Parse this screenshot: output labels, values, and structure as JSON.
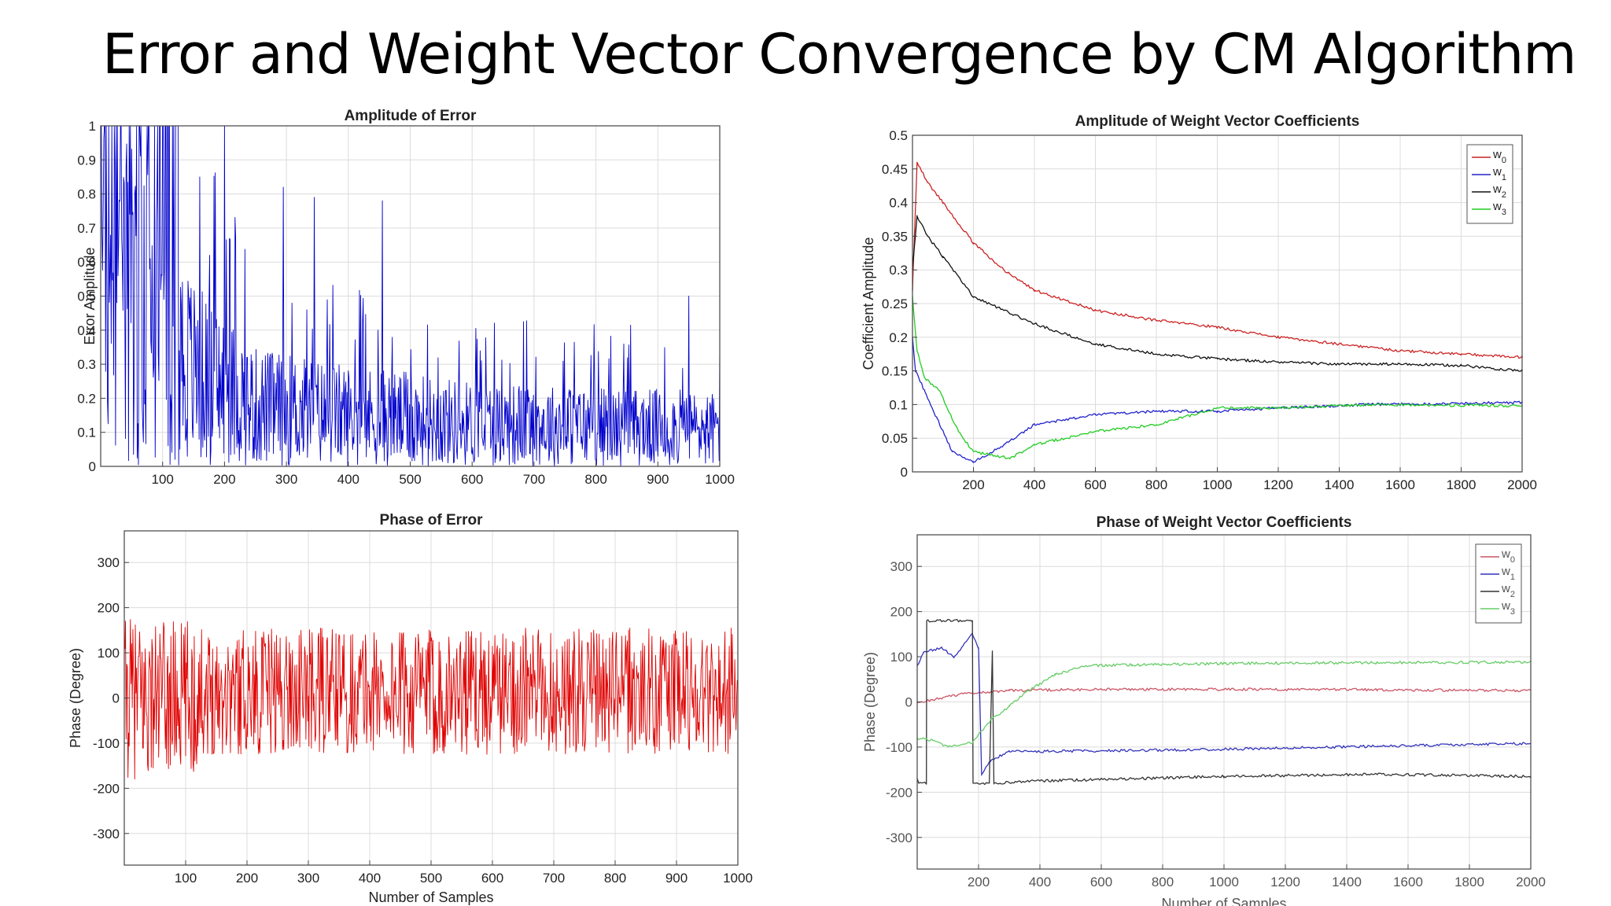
{
  "slide": {
    "title": "Error and Weight Vector Convergence by CM Algorithm"
  },
  "chart_data": [
    {
      "id": "amp-error",
      "type": "line",
      "title": "Amplitude of Error",
      "xlabel": "",
      "ylabel": "Error Amplitude",
      "xlim": [
        0,
        1000
      ],
      "ylim": [
        0,
        1
      ],
      "xticks": [
        100,
        200,
        300,
        400,
        500,
        600,
        700,
        800,
        900,
        1000
      ],
      "yticks": [
        0,
        0.1,
        0.2,
        0.3,
        0.4,
        0.5,
        0.6,
        0.7,
        0.8,
        0.9,
        1
      ],
      "grid": true,
      "legend": "none",
      "series": [
        {
          "color": "#0000cc",
          "style": "noisy_decay",
          "samples": 1000,
          "envelope": [
            [
              0,
              1.0
            ],
            [
              60,
              0.95
            ],
            [
              150,
              0.55
            ],
            [
              250,
              0.35
            ],
            [
              400,
              0.3
            ],
            [
              600,
              0.25
            ],
            [
              1000,
              0.22
            ]
          ],
          "spikes": [
            [
              200,
              1.0
            ],
            [
              160,
              0.85
            ],
            [
              295,
              0.82
            ],
            [
              345,
              0.79
            ],
            [
              455,
              0.78
            ],
            [
              950,
              0.5
            ],
            [
              1000,
              0.35
            ]
          ]
        }
      ]
    },
    {
      "id": "phase-error",
      "type": "line",
      "title": "Phase of Error",
      "xlabel": "Number of Samples",
      "ylabel": "Phase (Degree)",
      "xlim": [
        0,
        1000
      ],
      "ylim": [
        -370,
        370
      ],
      "xticks": [
        100,
        200,
        300,
        400,
        500,
        600,
        700,
        800,
        900,
        1000
      ],
      "yticks": [
        -300,
        -200,
        -100,
        0,
        100,
        200,
        300
      ],
      "grid": true,
      "legend": "none",
      "series": [
        {
          "color": "#e00000",
          "style": "phase_noise",
          "samples": 1000,
          "range_early": [
            -180,
            175
          ],
          "range_late": [
            -125,
            155
          ]
        }
      ]
    },
    {
      "id": "amp-weights",
      "type": "line",
      "title": "Amplitude of Weight Vector Coefficients",
      "xlabel": "",
      "ylabel": "Coefficient Amplitude",
      "xlim": [
        0,
        2000
      ],
      "ylim": [
        0,
        0.5
      ],
      "xticks": [
        200,
        400,
        600,
        800,
        1000,
        1200,
        1400,
        1600,
        1800,
        2000
      ],
      "yticks": [
        0,
        0.05,
        0.1,
        0.15,
        0.2,
        0.25,
        0.3,
        0.35,
        0.4,
        0.45,
        0.5
      ],
      "grid": true,
      "legend": "top-right",
      "series": [
        {
          "name": "w",
          "sub": "0",
          "color": "#cc2222",
          "points": [
            [
              0,
              0.27
            ],
            [
              15,
              0.46
            ],
            [
              50,
              0.43
            ],
            [
              100,
              0.4
            ],
            [
              200,
              0.34
            ],
            [
              300,
              0.3
            ],
            [
              400,
              0.27
            ],
            [
              600,
              0.24
            ],
            [
              800,
              0.225
            ],
            [
              1000,
              0.215
            ],
            [
              1200,
              0.2
            ],
            [
              1400,
              0.19
            ],
            [
              1600,
              0.18
            ],
            [
              1800,
              0.175
            ],
            [
              2000,
              0.17
            ]
          ]
        },
        {
          "name": "w",
          "sub": "1",
          "color": "#2222cc",
          "points": [
            [
              0,
              0.2
            ],
            [
              10,
              0.15
            ],
            [
              40,
              0.12
            ],
            [
              80,
              0.08
            ],
            [
              130,
              0.03
            ],
            [
              200,
              0.015
            ],
            [
              300,
              0.04
            ],
            [
              400,
              0.07
            ],
            [
              600,
              0.085
            ],
            [
              800,
              0.09
            ],
            [
              1000,
              0.09
            ],
            [
              1200,
              0.095
            ],
            [
              1500,
              0.1
            ],
            [
              2000,
              0.103
            ]
          ]
        },
        {
          "name": "w",
          "sub": "2",
          "color": "#111111",
          "points": [
            [
              0,
              0.3
            ],
            [
              15,
              0.38
            ],
            [
              50,
              0.35
            ],
            [
              100,
              0.32
            ],
            [
              200,
              0.26
            ],
            [
              300,
              0.24
            ],
            [
              400,
              0.22
            ],
            [
              600,
              0.19
            ],
            [
              800,
              0.175
            ],
            [
              1000,
              0.168
            ],
            [
              1200,
              0.163
            ],
            [
              1400,
              0.16
            ],
            [
              1600,
              0.16
            ],
            [
              1800,
              0.158
            ],
            [
              2000,
              0.15
            ]
          ]
        },
        {
          "name": "w",
          "sub": "3",
          "color": "#22cc22",
          "points": [
            [
              0,
              0.26
            ],
            [
              15,
              0.18
            ],
            [
              40,
              0.14
            ],
            [
              90,
              0.12
            ],
            [
              150,
              0.06
            ],
            [
              200,
              0.03
            ],
            [
              320,
              0.02
            ],
            [
              400,
              0.04
            ],
            [
              600,
              0.06
            ],
            [
              800,
              0.07
            ],
            [
              1000,
              0.095
            ],
            [
              1200,
              0.095
            ],
            [
              1500,
              0.1
            ],
            [
              2000,
              0.098
            ]
          ]
        }
      ]
    },
    {
      "id": "phase-weights",
      "type": "line",
      "title": "Phase of Weight Vector Coefficients",
      "xlabel": "Number of Samples",
      "ylabel": "Phase (Degree)",
      "xlim": [
        0,
        2000
      ],
      "ylim": [
        -370,
        370
      ],
      "xticks": [
        200,
        400,
        600,
        800,
        1000,
        1200,
        1400,
        1600,
        1800,
        2000
      ],
      "yticks": [
        -300,
        -200,
        -100,
        0,
        100,
        200,
        300
      ],
      "grid": true,
      "legend": "top-right",
      "series": [
        {
          "name": "w",
          "sub": "0",
          "color": "#cc5566",
          "points": [
            [
              0,
              -2
            ],
            [
              50,
              5
            ],
            [
              150,
              18
            ],
            [
              300,
              25
            ],
            [
              600,
              28
            ],
            [
              1000,
              28
            ],
            [
              1500,
              27
            ],
            [
              2000,
              25
            ]
          ]
        },
        {
          "name": "w",
          "sub": "1",
          "color": "#3333bb",
          "points": [
            [
              0,
              80
            ],
            [
              20,
              110
            ],
            [
              80,
              120
            ],
            [
              120,
              100
            ],
            [
              180,
              150
            ],
            [
              200,
              120
            ],
            [
              210,
              -160
            ],
            [
              240,
              -130
            ],
            [
              300,
              -110
            ],
            [
              600,
              -108
            ],
            [
              1000,
              -105
            ],
            [
              1500,
              -98
            ],
            [
              2000,
              -92
            ]
          ]
        },
        {
          "name": "w",
          "sub": "2",
          "color": "#333333",
          "points": [
            [
              0,
              -170
            ],
            [
              5,
              -180
            ],
            [
              30,
              -180
            ],
            [
              31,
              180
            ],
            [
              180,
              180
            ],
            [
              182,
              -180
            ],
            [
              235,
              -180
            ],
            [
              245,
              110
            ],
            [
              250,
              -180
            ],
            [
              400,
              -175
            ],
            [
              700,
              -170
            ],
            [
              1000,
              -165
            ],
            [
              1500,
              -160
            ],
            [
              2000,
              -165
            ]
          ]
        },
        {
          "name": "w",
          "sub": "3",
          "color": "#66cc66",
          "points": [
            [
              0,
              -80
            ],
            [
              50,
              -85
            ],
            [
              100,
              -100
            ],
            [
              180,
              -90
            ],
            [
              240,
              -40
            ],
            [
              300,
              -10
            ],
            [
              350,
              20
            ],
            [
              450,
              60
            ],
            [
              550,
              80
            ],
            [
              700,
              82
            ],
            [
              1000,
              85
            ],
            [
              1500,
              87
            ],
            [
              2000,
              88
            ]
          ]
        }
      ]
    }
  ]
}
